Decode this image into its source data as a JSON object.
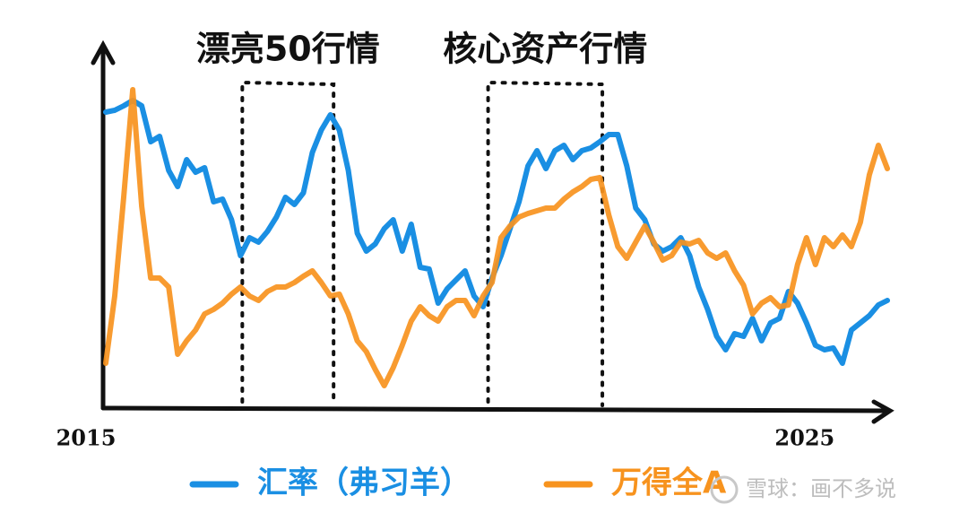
{
  "chart_data": {
    "type": "line",
    "annotations": [
      {
        "text": "漂亮50行情",
        "x_range": [
          2016.9,
          2018.17
        ]
      },
      {
        "text": "核心资产行情",
        "x_range": [
          2020.32,
          2021.91
        ]
      }
    ],
    "x": [
      2015,
      2015.125,
      2015.25,
      2015.375,
      2015.5,
      2015.625,
      2015.75,
      2015.875,
      2016,
      2016.125,
      2016.25,
      2016.375,
      2016.5,
      2016.625,
      2016.75,
      2016.875,
      2017,
      2017.125,
      2017.25,
      2017.375,
      2017.5,
      2017.625,
      2017.75,
      2017.875,
      2018,
      2018.125,
      2018.25,
      2018.375,
      2018.5,
      2018.625,
      2018.75,
      2018.875,
      2019,
      2019.125,
      2019.25,
      2019.375,
      2019.5,
      2019.625,
      2019.75,
      2019.875,
      2020,
      2020.125,
      2020.25,
      2020.375,
      2020.5,
      2020.625,
      2020.75,
      2020.875,
      2021,
      2021.125,
      2021.25,
      2021.375,
      2021.5,
      2021.625,
      2021.75,
      2021.875,
      2022,
      2022.125,
      2022.25,
      2022.375,
      2022.5,
      2022.625,
      2022.75,
      2022.875,
      2023,
      2023.125,
      2023.25,
      2023.375,
      2023.5,
      2023.625,
      2023.75,
      2023.875,
      2024,
      2024.125,
      2024.25,
      2024.375,
      2024.5,
      2024.625,
      2024.75,
      2024.875,
      2025,
      2025.125,
      2025.25,
      2025.375,
      2025.5,
      2025.625,
      2025.75,
      2025.875
    ],
    "series": [
      {
        "name": "汇率（弗习羊）",
        "color": "#1a8fe3",
        "values": [
          82.5,
          83,
          84.25,
          85.75,
          84.25,
          74.25,
          75.75,
          66.25,
          61.75,
          69.25,
          65.75,
          67,
          57.5,
          58.25,
          52.5,
          42.5,
          47.5,
          46.25,
          49.25,
          53.25,
          58.75,
          56.75,
          60,
          71.25,
          77.5,
          81.75,
          77.5,
          66.25,
          48.75,
          43.75,
          45.75,
          50,
          52.5,
          43.75,
          51.25,
          39.25,
          38.75,
          29.25,
          33.25,
          35.75,
          38.25,
          31.25,
          28.25,
          36.25,
          42.5,
          50,
          57.5,
          67.5,
          71.75,
          66.75,
          71.75,
          73.25,
          69.25,
          71.75,
          72.5,
          74.25,
          76.25,
          76.25,
          67.5,
          55.75,
          52.5,
          45.75,
          43.75,
          45,
          47.5,
          42.5,
          33.75,
          27.5,
          20,
          16.25,
          20.75,
          20,
          25,
          18.75,
          23.75,
          25,
          32.5,
          29.25,
          23.75,
          17.5,
          16.25,
          16.75,
          12.5,
          21.75,
          23.75,
          25.75,
          28.75,
          30
        ]
      },
      {
        "name": "万得全A",
        "color": "#f7931e",
        "values": [
          12.5,
          31.25,
          58.75,
          88.75,
          56.25,
          36.25,
          36.25,
          33.75,
          15,
          18.75,
          21.75,
          26.25,
          27.5,
          29.25,
          31.75,
          33.75,
          31.25,
          30,
          32.5,
          33.75,
          33.75,
          35,
          36.75,
          38.25,
          35,
          31.25,
          31.75,
          26.25,
          18.75,
          15.75,
          10.75,
          6.25,
          11.25,
          17.5,
          24.25,
          28.25,
          25.75,
          24.25,
          28.25,
          30,
          30,
          25.75,
          31.25,
          35,
          47.5,
          50.75,
          53.25,
          54.25,
          55,
          55.75,
          55.75,
          58.25,
          60.25,
          61.75,
          63.75,
          64.25,
          53.75,
          45,
          41.75,
          46.25,
          50.75,
          46.25,
          41.25,
          42.5,
          46.25,
          45.75,
          46.75,
          43.25,
          41.75,
          43.25,
          38.25,
          34.25,
          26.25,
          29.25,
          30.75,
          28.25,
          28.75,
          40,
          47.5,
          40,
          47.5,
          45,
          48.25,
          45,
          51.75,
          65,
          73.25,
          66.75
        ]
      }
    ],
    "xlim": [
      2015,
      2025.95
    ],
    "xticks": [
      2015,
      2025
    ],
    "ylim": [
      0,
      100
    ],
    "watermark": "雪球：画不多说"
  }
}
